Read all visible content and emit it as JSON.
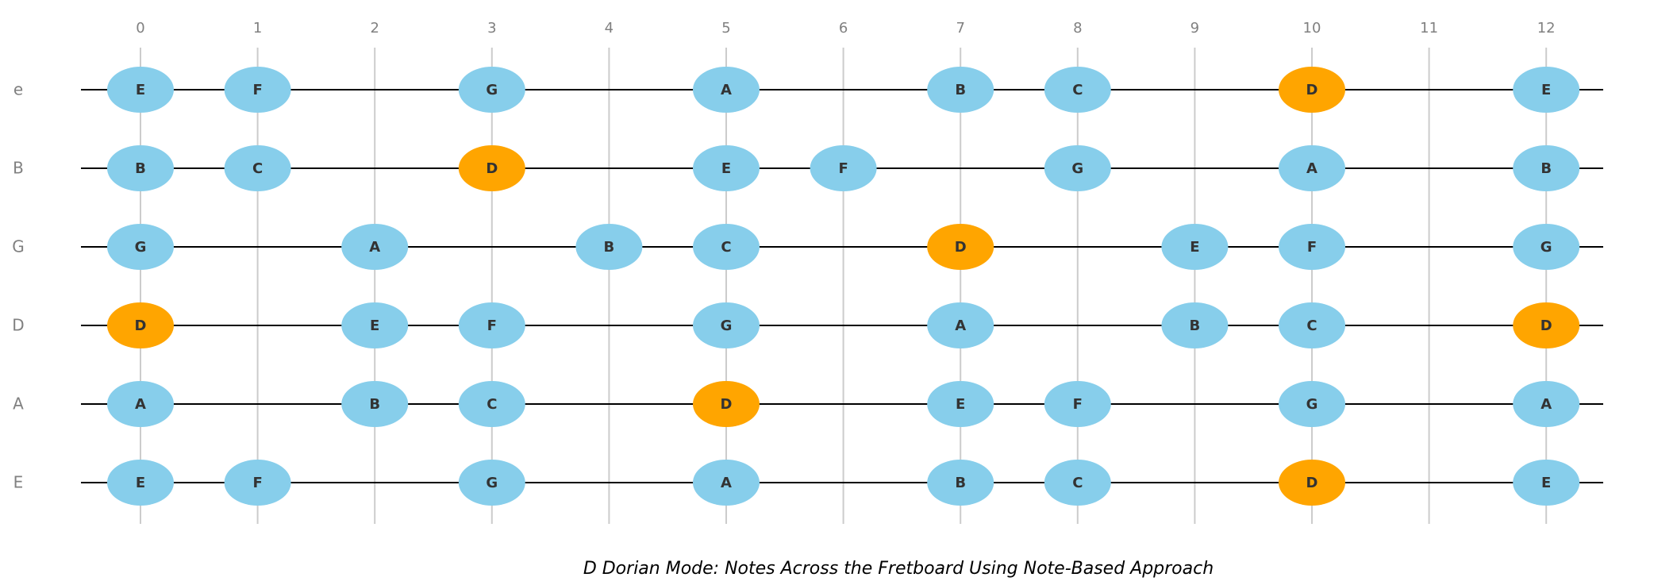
{
  "title": "D Dorian Mode: Notes Across the Fretboard Using Note-Based Approach",
  "colors": {
    "root": "#FFA500",
    "scale_note": "#87CEEB",
    "fret_line": "#cccccc",
    "string_line": "#000000",
    "muted_text": "#808080",
    "note_text": "#333333"
  },
  "chart_data": {
    "type": "scatter",
    "title": "D Dorian Mode: Notes Across the Fretboard Using Note-Based Approach",
    "root_note": "D",
    "frets": [
      0,
      1,
      2,
      3,
      4,
      5,
      6,
      7,
      8,
      9,
      10,
      11,
      12
    ],
    "fret_labels": [
      "0",
      "1",
      "2",
      "3",
      "4",
      "5",
      "6",
      "7",
      "8",
      "9",
      "10",
      "11",
      "12"
    ],
    "strings": [
      {
        "name": "e",
        "notes": [
          {
            "fret": 0,
            "note": "E"
          },
          {
            "fret": 1,
            "note": "F"
          },
          {
            "fret": 3,
            "note": "G"
          },
          {
            "fret": 5,
            "note": "A"
          },
          {
            "fret": 7,
            "note": "B"
          },
          {
            "fret": 8,
            "note": "C"
          },
          {
            "fret": 10,
            "note": "D"
          },
          {
            "fret": 12,
            "note": "E"
          }
        ]
      },
      {
        "name": "B",
        "notes": [
          {
            "fret": 0,
            "note": "B"
          },
          {
            "fret": 1,
            "note": "C"
          },
          {
            "fret": 3,
            "note": "D"
          },
          {
            "fret": 5,
            "note": "E"
          },
          {
            "fret": 6,
            "note": "F"
          },
          {
            "fret": 8,
            "note": "G"
          },
          {
            "fret": 10,
            "note": "A"
          },
          {
            "fret": 12,
            "note": "B"
          }
        ]
      },
      {
        "name": "G",
        "notes": [
          {
            "fret": 0,
            "note": "G"
          },
          {
            "fret": 2,
            "note": "A"
          },
          {
            "fret": 4,
            "note": "B"
          },
          {
            "fret": 5,
            "note": "C"
          },
          {
            "fret": 7,
            "note": "D"
          },
          {
            "fret": 9,
            "note": "E"
          },
          {
            "fret": 10,
            "note": "F"
          },
          {
            "fret": 12,
            "note": "G"
          }
        ]
      },
      {
        "name": "D",
        "notes": [
          {
            "fret": 0,
            "note": "D"
          },
          {
            "fret": 2,
            "note": "E"
          },
          {
            "fret": 3,
            "note": "F"
          },
          {
            "fret": 5,
            "note": "G"
          },
          {
            "fret": 7,
            "note": "A"
          },
          {
            "fret": 9,
            "note": "B"
          },
          {
            "fret": 10,
            "note": "C"
          },
          {
            "fret": 12,
            "note": "D"
          }
        ]
      },
      {
        "name": "A",
        "notes": [
          {
            "fret": 0,
            "note": "A"
          },
          {
            "fret": 2,
            "note": "B"
          },
          {
            "fret": 3,
            "note": "C"
          },
          {
            "fret": 5,
            "note": "D"
          },
          {
            "fret": 7,
            "note": "E"
          },
          {
            "fret": 8,
            "note": "F"
          },
          {
            "fret": 10,
            "note": "G"
          },
          {
            "fret": 12,
            "note": "A"
          }
        ]
      },
      {
        "name": "E",
        "notes": [
          {
            "fret": 0,
            "note": "E"
          },
          {
            "fret": 1,
            "note": "F"
          },
          {
            "fret": 3,
            "note": "G"
          },
          {
            "fret": 5,
            "note": "A"
          },
          {
            "fret": 7,
            "note": "B"
          },
          {
            "fret": 8,
            "note": "C"
          },
          {
            "fret": 10,
            "note": "D"
          },
          {
            "fret": 12,
            "note": "E"
          }
        ]
      }
    ],
    "grid": true,
    "legend": "none"
  }
}
